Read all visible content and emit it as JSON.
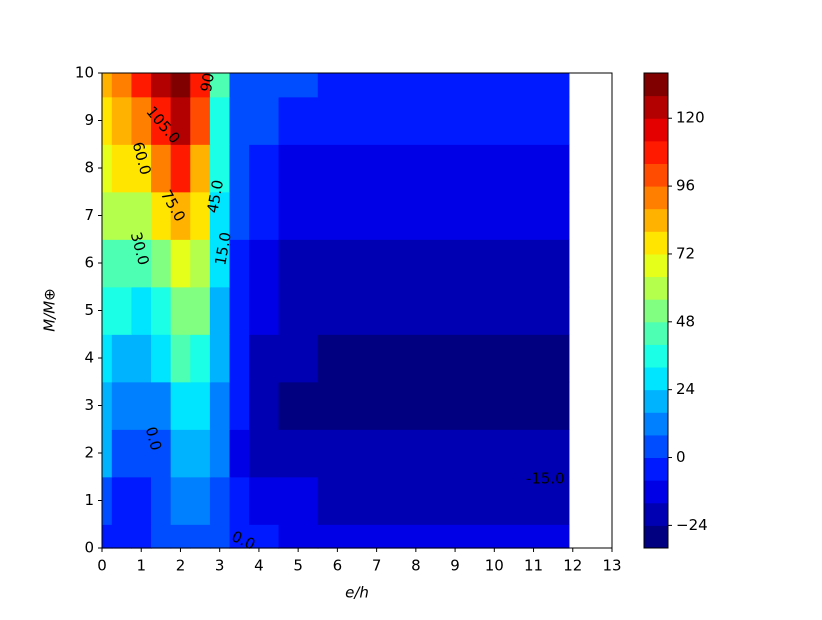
{
  "chart_data": {
    "type": "contour",
    "colormap": "jet",
    "xlabel": "e/h",
    "ylabel": "M/M⊕",
    "x": [
      0,
      0.5,
      1,
      1.5,
      2,
      2.5,
      3,
      3.5,
      4,
      5,
      6,
      8,
      10,
      11.9
    ],
    "y": [
      0,
      1,
      2,
      3,
      4,
      5,
      6,
      7,
      8,
      9,
      10
    ],
    "z": [
      [
        -2,
        -6,
        -4,
        0,
        4,
        3,
        0,
        -4,
        -8,
        -10,
        -10,
        -10,
        -10,
        -10
      ],
      [
        4,
        -6,
        -4,
        2,
        10,
        10,
        4,
        -6,
        -14,
        -16,
        -18,
        -18,
        -18,
        -18
      ],
      [
        16,
        4,
        0,
        6,
        16,
        18,
        10,
        -10,
        -22,
        -24,
        -24,
        -24,
        -24,
        -24
      ],
      [
        22,
        12,
        8,
        14,
        26,
        28,
        14,
        -8,
        -20,
        -26,
        -26,
        -26,
        -26,
        -26
      ],
      [
        28,
        22,
        18,
        26,
        40,
        36,
        18,
        -6,
        -18,
        -24,
        -26,
        -26,
        -26,
        -26
      ],
      [
        36,
        32,
        28,
        38,
        54,
        48,
        22,
        -4,
        -14,
        -22,
        -24,
        -24,
        -24,
        -24
      ],
      [
        46,
        44,
        42,
        54,
        70,
        60,
        26,
        -2,
        -10,
        -18,
        -20,
        -20,
        -20,
        -20
      ],
      [
        56,
        58,
        58,
        72,
        86,
        72,
        30,
        0,
        -6,
        -14,
        -16,
        -16,
        -16,
        -16
      ],
      [
        68,
        72,
        76,
        92,
        104,
        86,
        34,
        2,
        -2,
        -10,
        -12,
        -14,
        -14,
        -14
      ],
      [
        78,
        84,
        94,
        110,
        120,
        98,
        38,
        4,
        0,
        -4,
        -6,
        -8,
        -8,
        -8
      ],
      [
        84,
        92,
        108,
        124,
        134,
        104,
        40,
        6,
        2,
        0,
        -2,
        -4,
        -4,
        -4
      ]
    ],
    "xlim": [
      0,
      13
    ],
    "ylim": [
      0,
      10
    ],
    "xticks": [
      0,
      1,
      2,
      3,
      4,
      5,
      6,
      7,
      8,
      9,
      10,
      11,
      12,
      13
    ],
    "yticks": [
      0,
      1,
      2,
      3,
      4,
      5,
      6,
      7,
      8,
      9,
      10
    ],
    "levels": [
      -32,
      -24,
      -16,
      -8,
      0,
      8,
      16,
      24,
      32,
      40,
      48,
      56,
      64,
      72,
      80,
      88,
      96,
      104,
      112,
      120,
      128,
      136
    ],
    "colorbar_ticks": [
      {
        "value": -24,
        "label": "−24"
      },
      0,
      24,
      48,
      72,
      96,
      120
    ],
    "contour_labels": [
      "0.0",
      "0.0",
      "15.0",
      "30.0",
      "45.0",
      "60.0",
      "75.0",
      "90",
      "105.0",
      "-15.0"
    ]
  }
}
